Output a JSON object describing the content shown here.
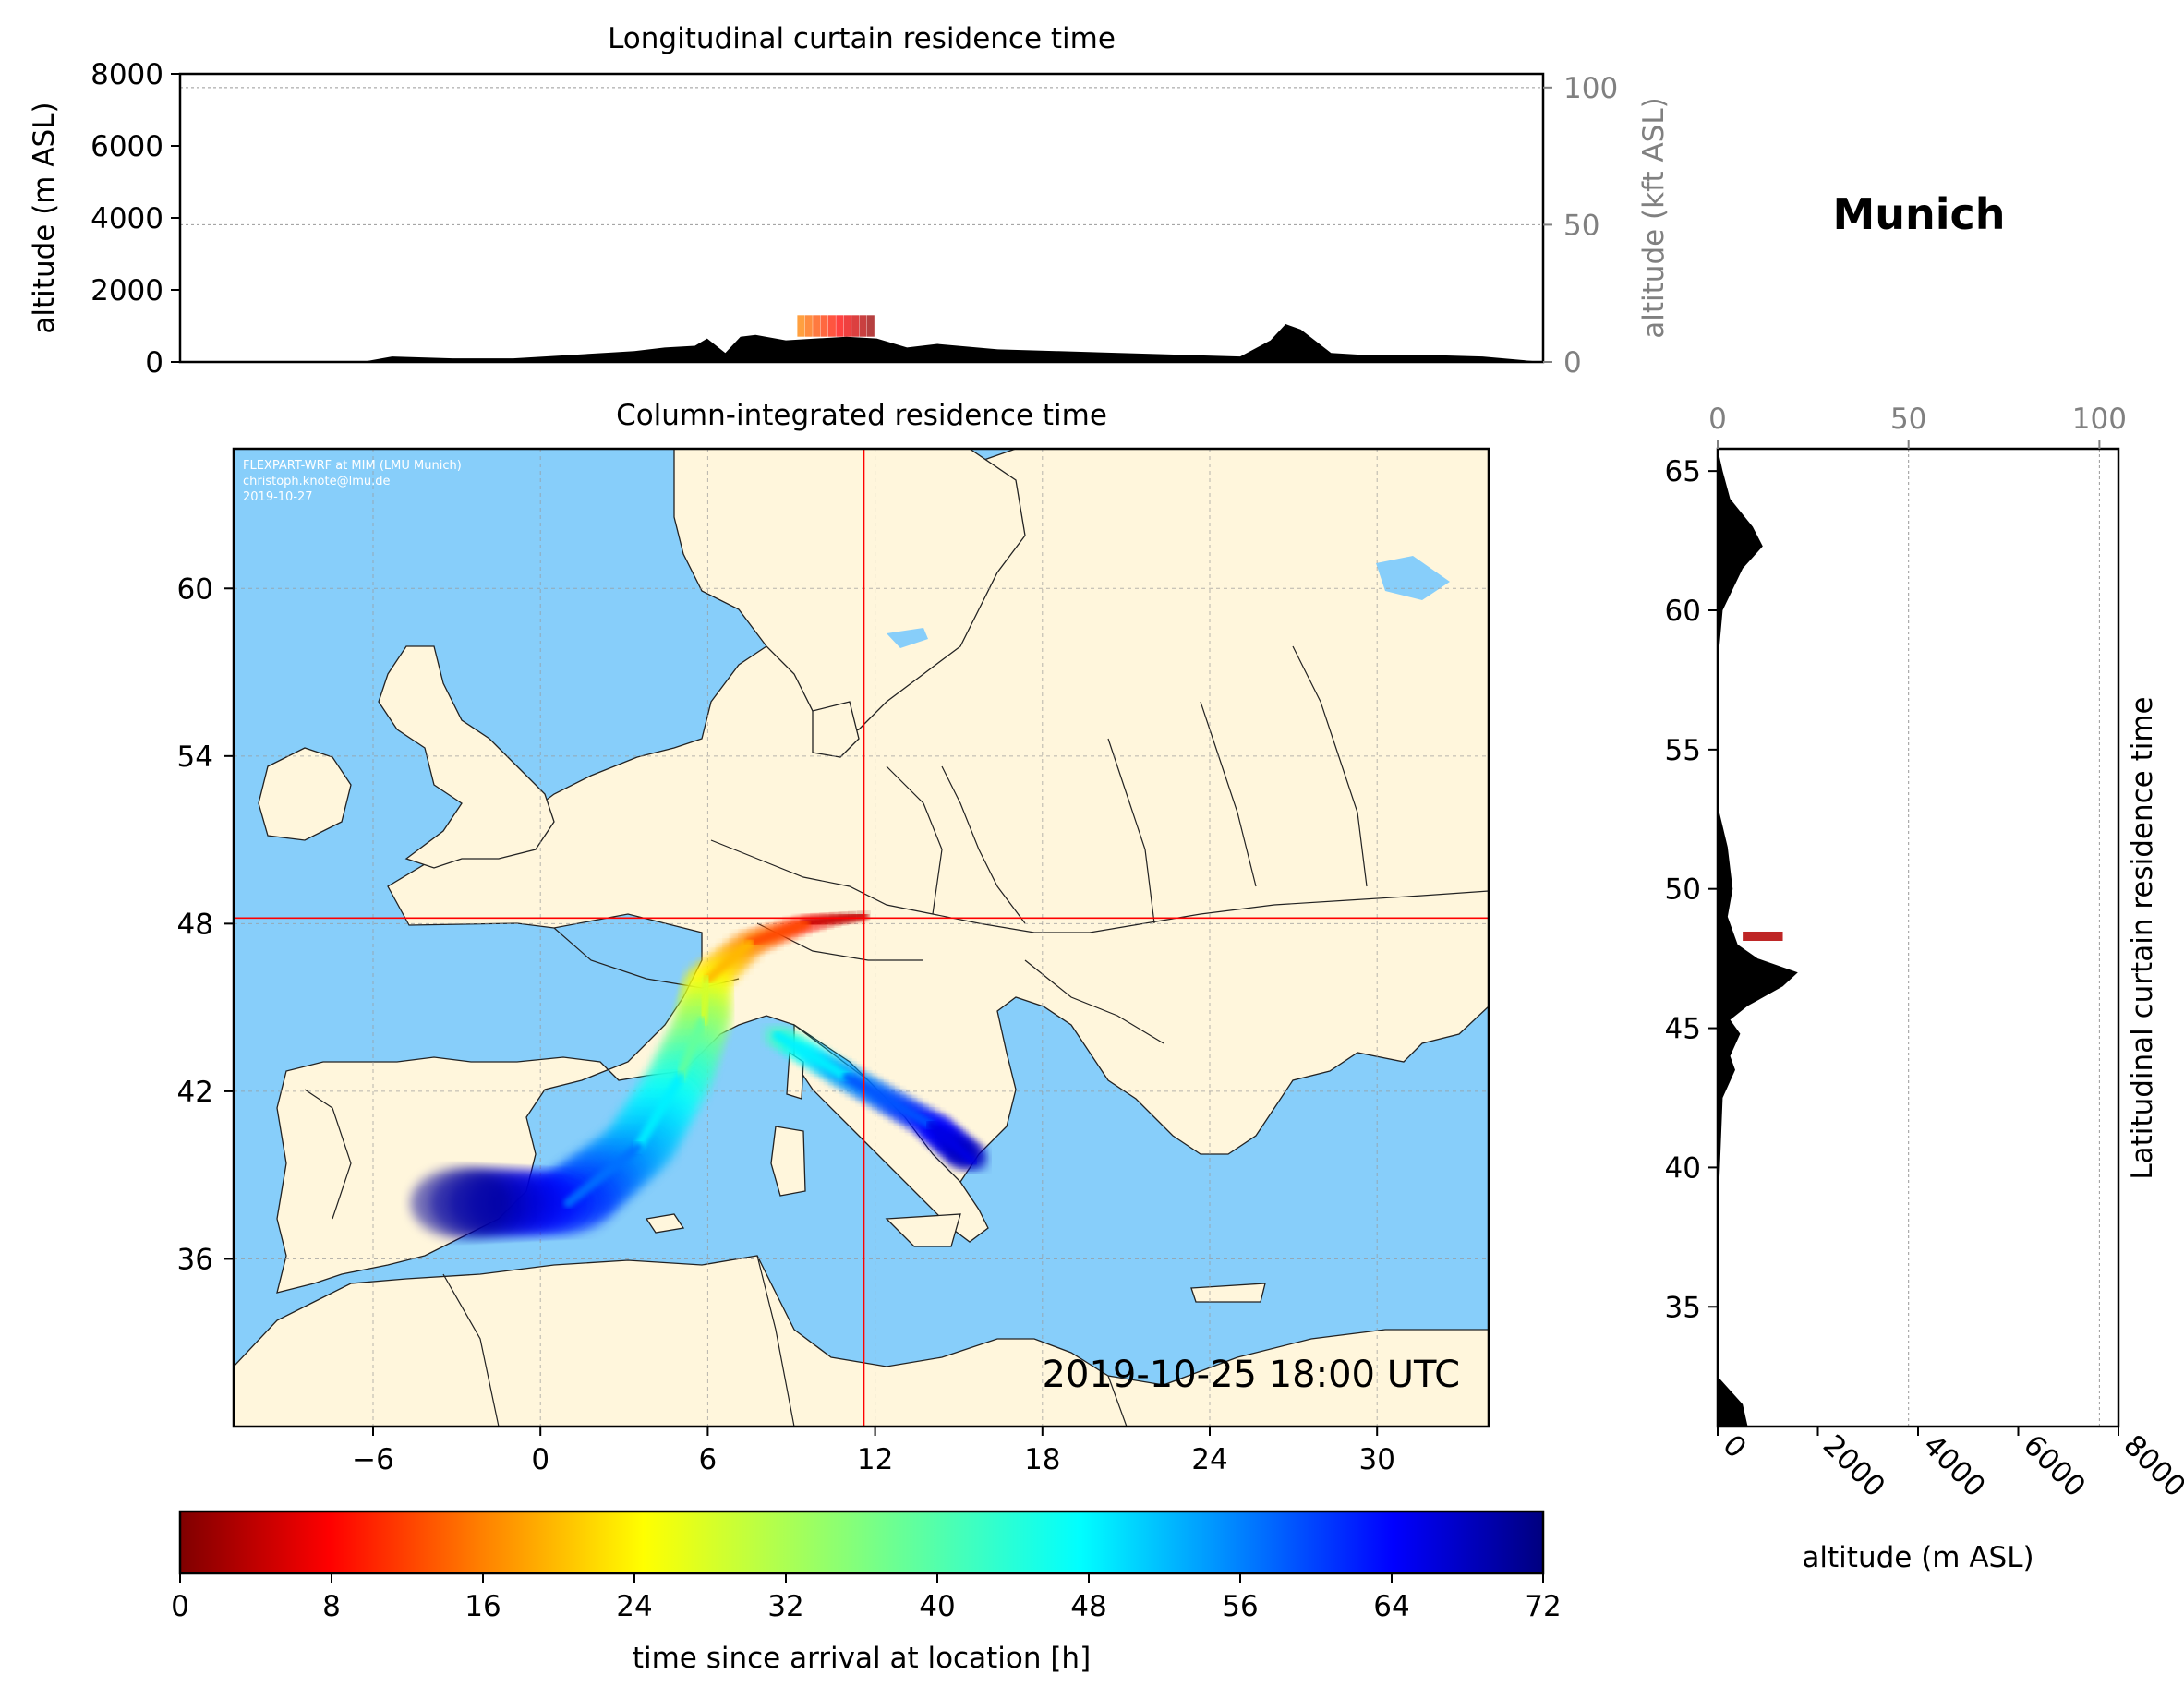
{
  "figure_title": "Munich",
  "colors": {
    "ocean": "#87CEFA",
    "land": "#FFF6DC",
    "terrain": "#000000",
    "crosshair": "#FF0000",
    "grid": "#999999",
    "secondary_axis": "#808080"
  },
  "top_panel": {
    "title": "Longitudinal curtain residence time",
    "ylabel_left": "altitude (m ASL)",
    "ylabel_right": "altitude (kft ASL)",
    "yticks_left": [
      "0",
      "2000",
      "4000",
      "6000",
      "8000"
    ],
    "yticks_right": [
      "0",
      "50",
      "100"
    ]
  },
  "map_panel": {
    "title": "Column-integrated residence time",
    "credit_line1": "FLEXPART-WRF at MIM (LMU Munich)",
    "credit_line2": "christoph.knote@lmu.de",
    "credit_line3": "2019-10-27",
    "timestamp": "2019-10-25 18:00 UTC",
    "xticks": [
      "−6",
      "0",
      "6",
      "12",
      "18",
      "24",
      "30"
    ],
    "yticks": [
      "36",
      "42",
      "48",
      "54",
      "60"
    ]
  },
  "side_panel": {
    "ylabel_right": "Latitudinal curtain residence time",
    "xlabel": "altitude (m ASL)",
    "xticks_bottom": [
      "0",
      "2000",
      "4000",
      "6000",
      "8000"
    ],
    "xticks_top": [
      "0",
      "50",
      "100"
    ],
    "yticks": [
      "35",
      "40",
      "45",
      "50",
      "55",
      "60",
      "65"
    ]
  },
  "colorbar": {
    "label": "time since arrival at location [h]",
    "ticks": [
      "0",
      "8",
      "16",
      "24",
      "32",
      "40",
      "48",
      "56",
      "64",
      "72"
    ]
  },
  "chart_data": [
    {
      "type": "heatmap",
      "name": "map",
      "title": "Column-integrated residence time",
      "xlim": [
        -11,
        34
      ],
      "ylim": [
        30,
        65
      ],
      "xticks": [
        -6,
        0,
        6,
        12,
        18,
        24,
        30
      ],
      "yticks": [
        36,
        42,
        48,
        54,
        60
      ],
      "receptor": {
        "lon": 11.6,
        "lat": 48.2
      },
      "plume_path": [
        {
          "lon": 11.6,
          "lat": 48.3,
          "t": 0
        },
        {
          "lon": 9.5,
          "lat": 48.0,
          "t": 10
        },
        {
          "lon": 7.5,
          "lat": 47.3,
          "t": 18
        },
        {
          "lon": 6.0,
          "lat": 46.0,
          "t": 26
        },
        {
          "lon": 5.8,
          "lat": 44.5,
          "t": 34
        },
        {
          "lon": 5.0,
          "lat": 42.5,
          "t": 42
        },
        {
          "lon": 3.5,
          "lat": 40.0,
          "t": 50
        },
        {
          "lon": 1.0,
          "lat": 38.0,
          "t": 60
        },
        {
          "lon": -3.5,
          "lat": 38.0,
          "t": 72
        }
      ],
      "secondary_branch": [
        {
          "lon": 8.5,
          "lat": 44.0,
          "t": 40
        },
        {
          "lon": 11.0,
          "lat": 42.5,
          "t": 52
        },
        {
          "lon": 14.0,
          "lat": 40.8,
          "t": 62
        },
        {
          "lon": 15.5,
          "lat": 39.5,
          "t": 68
        }
      ]
    },
    {
      "type": "area",
      "name": "longitudinal_curtain",
      "title": "Longitudinal curtain residence time",
      "xlabel": "",
      "ylabel": "altitude (m ASL)",
      "xlim": [
        -11,
        34
      ],
      "ylim": [
        0,
        8000
      ],
      "terrain_lon": [
        -11,
        -5,
        -4,
        -2,
        0,
        2,
        4,
        5,
        6,
        6.4,
        7,
        7.5,
        8,
        9,
        10,
        11,
        12,
        13,
        14,
        16,
        18,
        20,
        22,
        24,
        25,
        25.5,
        26,
        27,
        28,
        30,
        32,
        34
      ],
      "terrain_elev": [
        0,
        0,
        150,
        100,
        100,
        200,
        300,
        400,
        450,
        650,
        250,
        700,
        750,
        600,
        650,
        700,
        650,
        400,
        500,
        350,
        300,
        250,
        200,
        150,
        600,
        1050,
        900,
        250,
        200,
        200,
        150,
        0
      ],
      "plume_elev_range_m": [
        700,
        1300
      ],
      "plume_lon_range": [
        9.5,
        11.8
      ]
    },
    {
      "type": "area",
      "name": "latitudinal_curtain",
      "title": "Latitudinal curtain residence time",
      "xlabel": "altitude (m ASL)",
      "ylabel": "",
      "xlim": [
        0,
        8000
      ],
      "ylim": [
        30.7,
        65.8
      ],
      "terrain_lat": [
        30.7,
        31.5,
        32.5,
        33,
        38,
        42.5,
        43.5,
        44,
        44.8,
        45.3,
        45.8,
        46.5,
        47,
        47.5,
        48,
        49,
        50,
        51.5,
        53,
        58,
        60,
        61.5,
        62.3,
        63,
        64,
        65,
        65.8
      ],
      "terrain_elev": [
        600,
        500,
        0,
        0,
        0,
        100,
        350,
        250,
        450,
        250,
        600,
        1300,
        1600,
        800,
        400,
        200,
        300,
        200,
        0,
        0,
        100,
        500,
        900,
        700,
        250,
        100,
        0
      ],
      "plume_lat": 48.3,
      "plume_elev_range_m": [
        500,
        1300
      ]
    }
  ]
}
